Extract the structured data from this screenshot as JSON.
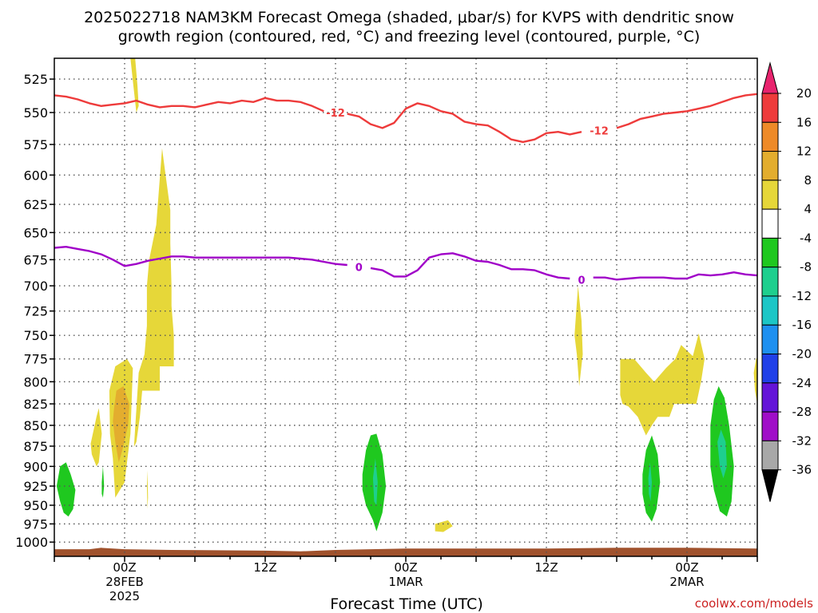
{
  "title_line1": "2025022718 NAM3KM Forecast Omega (shaded, μbar/s) for KVPS with dendritic snow",
  "title_line2": "growth region (contoured, red, °C) and freezing level (contoured, purple, °C)",
  "xlabel": "Forecast Time (UTC)",
  "credit": "coolwx.com/models",
  "chart_data": {
    "type": "heatmap",
    "title": "2025022718 NAM3KM Forecast Omega (shaded, μbar/s) for KVPS with dendritic snow growth region (contoured, red, °C) and freezing level (contoured, purple, °C)",
    "xlabel": "Forecast Time (UTC)",
    "ylabel": "",
    "x_unit": "hours since 2025-02-27 18Z",
    "xlim": [
      0,
      60
    ],
    "ylim": [
      1020,
      510
    ],
    "y_scale": "log-pressure",
    "y_ticks": [
      525,
      550,
      575,
      600,
      625,
      650,
      675,
      700,
      725,
      750,
      775,
      800,
      825,
      850,
      875,
      900,
      925,
      950,
      975,
      1000
    ],
    "x_ticks": [
      {
        "x": 6,
        "lines": [
          "00Z",
          "28FEB",
          "2025"
        ]
      },
      {
        "x": 18,
        "lines": [
          "12Z"
        ]
      },
      {
        "x": 30,
        "lines": [
          "00Z",
          "1MAR"
        ]
      },
      {
        "x": 42,
        "lines": [
          "12Z"
        ]
      },
      {
        "x": 54,
        "lines": [
          "00Z",
          "2MAR"
        ]
      }
    ],
    "grid": true,
    "colorbar": {
      "levels": [
        "20",
        "16",
        "12",
        "8",
        "4",
        "-4",
        "-8",
        "-12",
        "-16",
        "-20",
        "-24",
        "-28",
        "-32",
        "-36"
      ],
      "colors": [
        "#e8246e",
        "#ee3b3b",
        "#ee8a28",
        "#e3ad2e",
        "#e6d739",
        "#ffffff",
        "#1fc81f",
        "#1ecf8e",
        "#1cc6c6",
        "#1e90f0",
        "#2040e8",
        "#6414d8",
        "#a00ec8",
        "#a8a8a8",
        "#000000"
      ]
    },
    "series": [
      {
        "name": "-12",
        "color": "#ee3b3b",
        "label_positions": [
          24,
          46.5
        ],
        "x": [
          0,
          1,
          2,
          3,
          4,
          5,
          6,
          7,
          8,
          9,
          10,
          11,
          12,
          13,
          14,
          15,
          16,
          17,
          18,
          19,
          20,
          21,
          22,
          23,
          24,
          25,
          26,
          27,
          28,
          29,
          30,
          31,
          32,
          33,
          34,
          35,
          36,
          37,
          38,
          39,
          40,
          41,
          42,
          43,
          44,
          45,
          46,
          47,
          48,
          49,
          50,
          51,
          52,
          53,
          54,
          55,
          56,
          57,
          58,
          59,
          60
        ],
        "y": [
          537,
          538,
          540,
          543,
          545,
          544,
          543,
          541,
          544,
          546,
          545,
          545,
          546,
          544,
          542,
          543,
          541,
          542,
          539,
          541,
          541,
          542,
          545,
          549,
          550,
          551,
          553,
          559,
          562,
          558,
          547,
          543,
          545,
          549,
          551,
          557,
          559,
          560,
          565,
          571,
          573,
          571,
          566,
          565,
          567,
          565,
          561,
          567,
          562,
          559,
          555,
          553,
          551,
          550,
          549,
          547,
          545,
          542,
          539,
          537,
          536
        ]
      },
      {
        "name": "0",
        "color": "#a000c8",
        "label_positions": [
          26,
          45
        ],
        "x": [
          0,
          1,
          2,
          3,
          4,
          5,
          6,
          7,
          8,
          9,
          10,
          11,
          12,
          13,
          14,
          15,
          16,
          17,
          18,
          19,
          20,
          21,
          22,
          23,
          24,
          25,
          26,
          27,
          28,
          29,
          30,
          31,
          32,
          33,
          34,
          35,
          36,
          37,
          38,
          39,
          40,
          41,
          42,
          43,
          44,
          45,
          46,
          47,
          48,
          49,
          50,
          51,
          52,
          53,
          54,
          55,
          56,
          57,
          58,
          59,
          60
        ],
        "y": [
          664,
          663,
          665,
          667,
          670,
          675,
          681,
          679,
          676,
          674,
          672,
          672,
          673,
          673,
          673,
          673,
          673,
          673,
          673,
          673,
          673,
          674,
          675,
          677,
          679,
          680,
          682,
          683,
          685,
          691,
          691,
          685,
          673,
          670,
          669,
          672,
          676,
          677,
          680,
          684,
          684,
          685,
          689,
          692,
          693,
          694,
          692,
          692,
          694,
          693,
          692,
          692,
          692,
          693,
          693,
          689,
          690,
          689,
          687,
          689,
          690
        ]
      }
    ],
    "omega_regions": [
      {
        "value": 4,
        "points": [
          [
            6.9,
            510
          ],
          [
            7.1,
            530
          ],
          [
            7.2,
            545
          ],
          [
            7.0,
            550
          ],
          [
            6.75,
            530
          ],
          [
            6.5,
            510
          ]
        ]
      },
      {
        "value": 4,
        "points": [
          [
            6.8,
            876
          ],
          [
            7.2,
            790
          ],
          [
            7.7,
            770
          ],
          [
            7.9,
            740
          ],
          [
            7.9,
            700
          ],
          [
            8.1,
            675
          ],
          [
            8.7,
            643
          ],
          [
            9.1,
            590
          ],
          [
            9.2,
            578
          ],
          [
            9.5,
            600
          ],
          [
            9.9,
            630
          ],
          [
            9.9,
            660
          ],
          [
            10,
            700
          ],
          [
            10,
            720
          ],
          [
            10.2,
            750
          ],
          [
            10.2,
            783
          ],
          [
            9.0,
            783
          ],
          [
            9.0,
            810
          ],
          [
            7.5,
            810
          ],
          [
            7.3,
            840
          ],
          [
            7.0,
            870
          ]
        ]
      },
      {
        "value": 4,
        "points": [
          [
            4.7,
            810
          ],
          [
            5.2,
            783
          ],
          [
            6.2,
            775
          ],
          [
            6.7,
            785
          ],
          [
            6.5,
            860
          ],
          [
            6.0,
            920
          ],
          [
            5.2,
            940
          ],
          [
            5.0,
            890
          ],
          [
            4.75,
            860
          ]
        ]
      },
      {
        "value": 4,
        "points": [
          [
            3.1,
            872
          ],
          [
            3.6,
            840
          ],
          [
            3.8,
            830
          ],
          [
            4.05,
            860
          ],
          [
            3.8,
            895
          ],
          [
            3.6,
            900
          ],
          [
            3.2,
            885
          ]
        ]
      },
      {
        "value": 4,
        "points": [
          [
            7.9,
            925
          ],
          [
            7.95,
            905
          ],
          [
            8.0,
            940
          ],
          [
            7.95,
            955
          ]
        ]
      },
      {
        "value": 4,
        "points": [
          [
            32.5,
            975
          ],
          [
            33.6,
            970
          ],
          [
            34.0,
            978
          ],
          [
            33.2,
            986
          ],
          [
            32.5,
            985
          ]
        ]
      },
      {
        "value": 4,
        "points": [
          [
            44.4,
            750
          ],
          [
            44.7,
            700
          ],
          [
            45.0,
            735
          ],
          [
            45.1,
            770
          ],
          [
            44.8,
            805
          ],
          [
            44.6,
            770
          ]
        ]
      },
      {
        "value": 4,
        "points": [
          [
            48.3,
            815
          ],
          [
            48.3,
            775
          ],
          [
            49.5,
            775
          ],
          [
            50.5,
            790
          ],
          [
            51.2,
            800
          ],
          [
            52.2,
            785
          ],
          [
            53,
            775
          ],
          [
            53.5,
            760
          ],
          [
            54.5,
            772
          ],
          [
            55.0,
            748
          ],
          [
            55.5,
            775
          ],
          [
            55.2,
            800
          ],
          [
            54.8,
            825
          ],
          [
            52.9,
            825
          ],
          [
            52.5,
            840
          ],
          [
            51.5,
            840
          ],
          [
            51.0,
            850
          ],
          [
            50.5,
            862
          ],
          [
            49.8,
            840
          ],
          [
            49.0,
            828
          ],
          [
            48.5,
            825
          ]
        ]
      },
      {
        "value": 4,
        "points": [
          [
            59.9,
            775
          ],
          [
            60.2,
            770
          ],
          [
            60.2,
            840
          ],
          [
            59.8,
            810
          ],
          [
            59.7,
            790
          ]
        ]
      },
      {
        "value": 8,
        "points": [
          [
            5.1,
            830
          ],
          [
            5.3,
            810
          ],
          [
            5.9,
            805
          ],
          [
            6.4,
            825
          ],
          [
            6.3,
            850
          ],
          [
            5.8,
            880
          ],
          [
            5.5,
            895
          ],
          [
            5.2,
            870
          ],
          [
            5.0,
            845
          ]
        ]
      },
      {
        "value": -4,
        "points": [
          [
            0.2,
            925
          ],
          [
            0.5,
            900
          ],
          [
            1.0,
            895
          ],
          [
            1.4,
            910
          ],
          [
            1.8,
            930
          ],
          [
            1.6,
            955
          ],
          [
            1.2,
            965
          ],
          [
            0.8,
            960
          ],
          [
            0.5,
            945
          ]
        ]
      },
      {
        "value": -4,
        "points": [
          [
            4.05,
            920
          ],
          [
            4.15,
            900
          ],
          [
            4.25,
            925
          ],
          [
            4.15,
            940
          ],
          [
            4.05,
            935
          ]
        ]
      },
      {
        "value": -4,
        "points": [
          [
            26.3,
            910
          ],
          [
            26.6,
            880
          ],
          [
            27.0,
            862
          ],
          [
            27.5,
            860
          ],
          [
            28.0,
            885
          ],
          [
            28.3,
            925
          ],
          [
            28.0,
            960
          ],
          [
            27.5,
            985
          ],
          [
            27.2,
            970
          ],
          [
            26.6,
            950
          ],
          [
            26.3,
            930
          ]
        ]
      },
      {
        "value": -4,
        "points": [
          [
            50.2,
            910
          ],
          [
            50.5,
            880
          ],
          [
            51.0,
            862
          ],
          [
            51.5,
            885
          ],
          [
            51.7,
            920
          ],
          [
            51.4,
            955
          ],
          [
            51.0,
            972
          ],
          [
            50.5,
            960
          ],
          [
            50.2,
            935
          ]
        ]
      },
      {
        "value": -4,
        "points": [
          [
            56.0,
            850
          ],
          [
            56.3,
            820
          ],
          [
            56.7,
            805
          ],
          [
            57.2,
            818
          ],
          [
            57.6,
            850
          ],
          [
            58.0,
            900
          ],
          [
            57.8,
            945
          ],
          [
            57.4,
            965
          ],
          [
            56.8,
            958
          ],
          [
            56.3,
            930
          ],
          [
            56.0,
            900
          ]
        ]
      },
      {
        "value": -8,
        "points": [
          [
            27.2,
            915
          ],
          [
            27.4,
            890
          ],
          [
            27.6,
            920
          ],
          [
            27.5,
            950
          ],
          [
            27.3,
            945
          ]
        ]
      },
      {
        "value": -8,
        "points": [
          [
            50.7,
            915
          ],
          [
            50.85,
            895
          ],
          [
            51.0,
            920
          ],
          [
            50.9,
            945
          ],
          [
            50.75,
            935
          ]
        ]
      },
      {
        "value": -8,
        "points": [
          [
            56.6,
            870
          ],
          [
            56.9,
            855
          ],
          [
            57.3,
            870
          ],
          [
            57.4,
            900
          ],
          [
            57.1,
            915
          ],
          [
            56.8,
            900
          ]
        ]
      }
    ],
    "surface": {
      "value": 1020,
      "color": "#a0522d",
      "top": [
        [
          0,
          1010
        ],
        [
          3,
          1010
        ],
        [
          4,
          1008
        ],
        [
          6,
          1010
        ],
        [
          10,
          1011
        ],
        [
          18,
          1012
        ],
        [
          21,
          1013
        ],
        [
          24,
          1011
        ],
        [
          30,
          1009
        ],
        [
          36,
          1009
        ],
        [
          42,
          1009
        ],
        [
          48,
          1008
        ],
        [
          54,
          1008
        ],
        [
          60,
          1009
        ]
      ]
    }
  }
}
